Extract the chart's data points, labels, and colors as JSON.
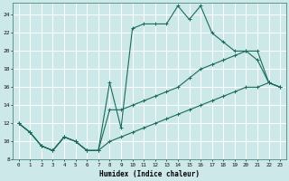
{
  "xlabel": "Humidex (Indice chaleur)",
  "bg_color": "#cde8e8",
  "grid_color": "#ffffff",
  "line_color": "#1a6b5a",
  "ylim": [
    8,
    25
  ],
  "xlim": [
    -0.5,
    23.5
  ],
  "yticks": [
    8,
    10,
    12,
    14,
    16,
    18,
    20,
    22,
    24
  ],
  "xticks": [
    0,
    1,
    2,
    3,
    4,
    5,
    6,
    7,
    8,
    9,
    10,
    11,
    12,
    13,
    14,
    15,
    16,
    17,
    18,
    19,
    20,
    21,
    22,
    23
  ],
  "line1_x": [
    0,
    1,
    2,
    3,
    4,
    5,
    6,
    7,
    8,
    9,
    10,
    11,
    12,
    13,
    14,
    15,
    16,
    17,
    18,
    19,
    20,
    21,
    22,
    23
  ],
  "line1_y": [
    12,
    11,
    9.5,
    9,
    10.5,
    10,
    9,
    9,
    16.5,
    11.5,
    22.5,
    23,
    23,
    23,
    25,
    23.5,
    25,
    22,
    21,
    20,
    20,
    19,
    16.5,
    16
  ],
  "line2_x": [
    0,
    1,
    2,
    3,
    4,
    5,
    6,
    7,
    8,
    9,
    10,
    11,
    12,
    13,
    14,
    15,
    16,
    17,
    18,
    19,
    20,
    21,
    22,
    23
  ],
  "line2_y": [
    12,
    11,
    9.5,
    9,
    10.5,
    10,
    9,
    9,
    13.5,
    13.5,
    14,
    14.5,
    15,
    15.5,
    16,
    17,
    18,
    18.5,
    19,
    19.5,
    20,
    20,
    16.5,
    16
  ],
  "line3_x": [
    0,
    1,
    2,
    3,
    4,
    5,
    6,
    7,
    8,
    9,
    10,
    11,
    12,
    13,
    14,
    15,
    16,
    17,
    18,
    19,
    20,
    21,
    22,
    23
  ],
  "line3_y": [
    12,
    11,
    9.5,
    9,
    10.5,
    10,
    9,
    9,
    10,
    10.5,
    11,
    11.5,
    12,
    12.5,
    13,
    13.5,
    14,
    14.5,
    15,
    15.5,
    16,
    16,
    16.5,
    16
  ]
}
